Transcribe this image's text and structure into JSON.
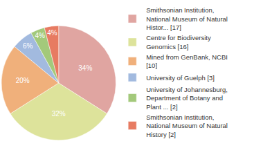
{
  "chart_data": {
    "type": "pie",
    "categories": [
      "Smithsonian Institution, National Museum of Natural Histor... [17]",
      "Centre for Biodiversity Genomics [16]",
      "Mined from GenBank, NCBI [10]",
      "University of Guelph [3]",
      "University of Johannesburg, Department of Botany and Plant ... [2]",
      "Smithsonian Institution, National Museum of Natural History [2]"
    ],
    "values": [
      34,
      32,
      20,
      6,
      4,
      4
    ],
    "value_labels": [
      "34%",
      "32%",
      "20%",
      "6%",
      "4%",
      "4%"
    ],
    "colors": [
      "#e0a5a1",
      "#dde39b",
      "#f0b07b",
      "#a2badf",
      "#a3c97b",
      "#e77b62"
    ],
    "data_labels": true,
    "legend": "right"
  }
}
